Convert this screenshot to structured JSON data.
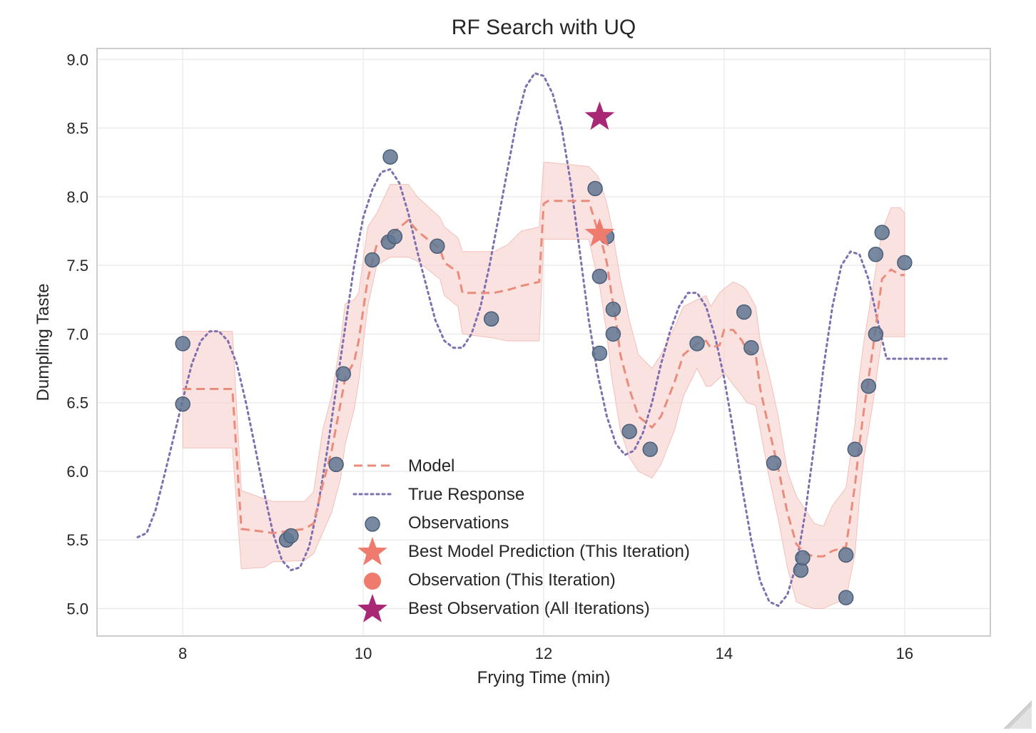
{
  "chart_data": {
    "type": "line",
    "title": "RF Search with UQ",
    "xlabel": "Frying Time (min)",
    "ylabel": "Dumpling Taste",
    "xlim": [
      7.05,
      16.95
    ],
    "ylim": [
      4.8,
      9.08
    ],
    "x_ticks": [
      8,
      10,
      12,
      14,
      16
    ],
    "x_tick_labels": [
      "8",
      "10",
      "12",
      "14",
      "16"
    ],
    "y_ticks": [
      5.0,
      5.5,
      6.0,
      6.5,
      7.0,
      7.5,
      8.0,
      8.5,
      9.0
    ],
    "y_tick_labels": [
      "5.0",
      "5.5",
      "6.0",
      "6.5",
      "7.0",
      "7.5",
      "8.0",
      "8.5",
      "9.0"
    ],
    "grid": true,
    "legend_position": "lower-center",
    "colors": {
      "model": "#ea8c7c",
      "band": "#f7d2cf",
      "true_response": "#7e6fb0",
      "observations": "#5f7590",
      "best_model": "#ee7b6e",
      "observation_this_iteration": "#ee7b6e",
      "best_observation": "#a82876",
      "grid": "#ececec",
      "frame": "#cccccc"
    },
    "series": [
      {
        "name": "Model",
        "kind": "line",
        "style": "dashed",
        "x": [
          8.0,
          8.55,
          8.65,
          8.9,
          9.0,
          9.35,
          9.45,
          9.55,
          9.65,
          9.75,
          9.8,
          9.9,
          9.95,
          10.05,
          10.15,
          10.3,
          10.5,
          10.6,
          10.85,
          10.9,
          11.05,
          11.1,
          11.45,
          11.6,
          11.75,
          11.95,
          12.0,
          12.05,
          12.5,
          12.6,
          12.62,
          12.7,
          12.75,
          12.8,
          12.85,
          12.95,
          13.05,
          13.2,
          13.3,
          13.45,
          13.55,
          13.7,
          13.8,
          13.85,
          13.95,
          14.0,
          14.1,
          14.2,
          14.25,
          14.35,
          14.4,
          14.5,
          14.6,
          14.7,
          14.8,
          14.9,
          15.0,
          15.1,
          15.2,
          15.35,
          15.45,
          15.5,
          15.55,
          15.65,
          15.75,
          15.85,
          15.95,
          16.0
        ],
        "y": [
          6.6,
          6.6,
          5.58,
          5.56,
          5.55,
          5.58,
          5.62,
          5.9,
          6.15,
          6.5,
          6.68,
          6.8,
          6.95,
          7.4,
          7.65,
          7.72,
          7.83,
          7.75,
          7.62,
          7.52,
          7.45,
          7.3,
          7.3,
          7.32,
          7.35,
          7.38,
          7.95,
          7.97,
          7.97,
          7.75,
          7.73,
          7.52,
          7.3,
          7.1,
          6.85,
          6.6,
          6.4,
          6.32,
          6.4,
          6.65,
          6.85,
          6.93,
          6.95,
          6.9,
          6.92,
          7.03,
          7.03,
          6.95,
          6.88,
          6.85,
          6.6,
          6.3,
          6.02,
          5.7,
          5.47,
          5.4,
          5.38,
          5.38,
          5.42,
          5.45,
          5.9,
          6.2,
          6.45,
          6.9,
          7.4,
          7.47,
          7.43,
          7.43
        ]
      },
      {
        "name": "",
        "kind": "band",
        "x": [
          8.0,
          8.55,
          8.65,
          8.9,
          9.0,
          9.35,
          9.45,
          9.55,
          9.65,
          9.75,
          9.8,
          9.9,
          9.95,
          10.05,
          10.15,
          10.3,
          10.5,
          10.6,
          10.85,
          10.9,
          11.05,
          11.1,
          11.45,
          11.6,
          11.75,
          11.95,
          12.0,
          12.05,
          12.5,
          12.6,
          12.62,
          12.7,
          12.75,
          12.8,
          12.85,
          12.95,
          13.05,
          13.2,
          13.3,
          13.45,
          13.55,
          13.7,
          13.8,
          13.85,
          13.95,
          14.0,
          14.1,
          14.2,
          14.25,
          14.35,
          14.4,
          14.5,
          14.6,
          14.7,
          14.8,
          14.9,
          15.0,
          15.1,
          15.2,
          15.35,
          15.45,
          15.5,
          15.55,
          15.65,
          15.75,
          15.85,
          15.95,
          16.0
        ],
        "lower": [
          6.17,
          6.17,
          5.29,
          5.3,
          5.34,
          5.35,
          5.4,
          5.55,
          5.7,
          5.95,
          6.2,
          6.45,
          6.65,
          7.2,
          7.5,
          7.56,
          7.56,
          7.53,
          7.4,
          7.28,
          7.2,
          7.0,
          6.97,
          6.95,
          6.95,
          6.95,
          7.69,
          7.69,
          7.69,
          7.4,
          7.35,
          7.0,
          6.7,
          6.5,
          6.3,
          6.1,
          6.0,
          5.95,
          6.05,
          6.3,
          6.55,
          6.75,
          6.62,
          6.62,
          6.68,
          6.72,
          6.63,
          6.55,
          6.5,
          6.48,
          6.3,
          5.95,
          5.65,
          5.3,
          5.05,
          5.02,
          5.0,
          5.0,
          5.03,
          5.07,
          5.4,
          5.8,
          6.1,
          6.5,
          6.98,
          6.98,
          6.98,
          6.98
        ],
        "upper": [
          7.02,
          7.02,
          5.86,
          5.8,
          5.78,
          5.78,
          5.85,
          6.3,
          6.55,
          6.95,
          7.22,
          7.25,
          7.3,
          7.78,
          7.88,
          8.09,
          8.09,
          8.0,
          7.85,
          7.78,
          7.7,
          7.6,
          7.6,
          7.65,
          7.75,
          7.78,
          8.25,
          8.25,
          8.22,
          8.15,
          8.12,
          7.95,
          7.8,
          7.6,
          7.4,
          7.1,
          6.85,
          6.75,
          6.85,
          7.05,
          7.2,
          7.25,
          7.28,
          7.2,
          7.3,
          7.33,
          7.38,
          7.35,
          7.32,
          7.2,
          6.95,
          6.7,
          6.4,
          6.0,
          5.82,
          5.72,
          5.62,
          5.6,
          5.75,
          5.88,
          6.35,
          6.7,
          6.95,
          7.35,
          7.75,
          7.92,
          7.92,
          7.88
        ]
      },
      {
        "name": "True Response",
        "kind": "line",
        "style": "dotted",
        "x": [
          7.5,
          7.6,
          7.7,
          7.8,
          7.9,
          8.0,
          8.1,
          8.2,
          8.3,
          8.4,
          8.5,
          8.6,
          8.7,
          8.8,
          8.9,
          9.0,
          9.1,
          9.2,
          9.3,
          9.4,
          9.5,
          9.6,
          9.7,
          9.8,
          9.9,
          10.0,
          10.1,
          10.2,
          10.3,
          10.4,
          10.5,
          10.6,
          10.7,
          10.8,
          10.9,
          11.0,
          11.1,
          11.2,
          11.3,
          11.4,
          11.5,
          11.6,
          11.7,
          11.8,
          11.9,
          12.0,
          12.1,
          12.2,
          12.3,
          12.4,
          12.5,
          12.6,
          12.7,
          12.8,
          12.9,
          13.0,
          13.1,
          13.2,
          13.3,
          13.4,
          13.5,
          13.6,
          13.7,
          13.8,
          13.9,
          14.0,
          14.1,
          14.2,
          14.3,
          14.4,
          14.5,
          14.6,
          14.7,
          14.8,
          14.9,
          15.0,
          15.1,
          15.2,
          15.3,
          15.4,
          15.5,
          15.6,
          15.7,
          15.8,
          15.9,
          16.0,
          16.1,
          16.2,
          16.3,
          16.4,
          16.5
        ],
        "y": [
          5.52,
          5.55,
          5.72,
          5.98,
          6.25,
          6.52,
          6.78,
          6.95,
          7.02,
          7.02,
          6.95,
          6.78,
          6.5,
          6.18,
          5.85,
          5.55,
          5.35,
          5.28,
          5.3,
          5.45,
          5.75,
          6.15,
          6.6,
          7.05,
          7.5,
          7.85,
          8.05,
          8.18,
          8.2,
          8.1,
          7.88,
          7.6,
          7.35,
          7.1,
          6.95,
          6.9,
          6.9,
          7.0,
          7.2,
          7.5,
          7.85,
          8.2,
          8.55,
          8.8,
          8.9,
          8.88,
          8.75,
          8.5,
          8.1,
          7.6,
          7.1,
          6.7,
          6.4,
          6.2,
          6.12,
          6.15,
          6.28,
          6.5,
          6.78,
          7.02,
          7.2,
          7.3,
          7.3,
          7.2,
          6.98,
          6.68,
          6.3,
          5.88,
          5.5,
          5.2,
          5.05,
          5.02,
          5.1,
          5.32,
          5.7,
          6.2,
          6.75,
          7.2,
          7.5,
          7.6,
          7.58,
          7.4,
          7.1,
          6.82,
          6.82,
          6.82,
          6.82,
          6.82,
          6.82,
          6.82,
          6.82
        ]
      },
      {
        "name": "Observations",
        "kind": "scatter",
        "marker": "circle",
        "x": [
          8.0,
          8.0,
          9.15,
          9.2,
          9.7,
          9.78,
          10.1,
          10.28,
          10.3,
          10.35,
          10.82,
          11.42,
          12.57,
          12.62,
          12.62,
          12.7,
          12.77,
          12.77,
          12.95,
          13.18,
          13.7,
          14.22,
          14.3,
          14.55,
          14.85,
          14.87,
          15.35,
          15.35,
          15.45,
          15.6,
          15.68,
          15.68,
          15.75,
          16.0
        ],
        "y": [
          6.93,
          6.49,
          5.5,
          5.53,
          6.05,
          6.71,
          7.54,
          7.67,
          8.29,
          7.71,
          7.64,
          7.11,
          8.06,
          7.42,
          6.86,
          7.71,
          7.18,
          7.0,
          6.29,
          6.16,
          6.93,
          7.16,
          6.9,
          6.06,
          5.28,
          5.37,
          5.08,
          5.39,
          6.16,
          6.62,
          7.58,
          7.0,
          7.74,
          7.52
        ]
      },
      {
        "name": "Best Model Prediction (This Iteration)",
        "kind": "scatter",
        "marker": "star",
        "x": [
          12.62
        ],
        "y": [
          7.73
        ]
      },
      {
        "name": "Observation (This Iteration)",
        "kind": "scatter",
        "marker": "circle",
        "x": [],
        "y": []
      },
      {
        "name": "Best Observation (All Iterations)",
        "kind": "scatter",
        "marker": "star",
        "x": [
          12.62
        ],
        "y": [
          8.58
        ]
      }
    ]
  }
}
